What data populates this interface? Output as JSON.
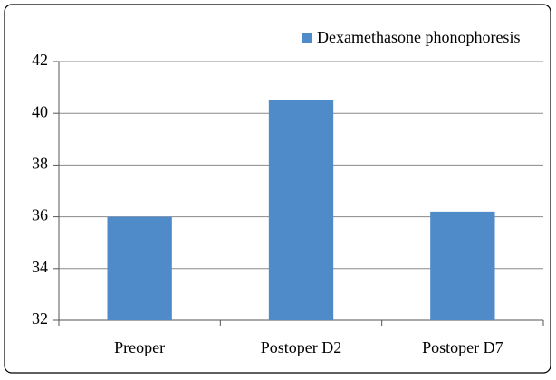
{
  "chart_data": {
    "type": "bar",
    "categories": [
      "Preoper",
      "Postoper D2",
      "Postoper D7"
    ],
    "series": [
      {
        "name": "Dexamethasone phonophoresis",
        "color": "#4f8ac9",
        "values": [
          36,
          40.5,
          36.2
        ]
      }
    ],
    "ylim": [
      32,
      42
    ],
    "yticks": [
      32,
      34,
      36,
      38,
      40,
      42
    ],
    "grid": true,
    "legend": "top-right"
  }
}
